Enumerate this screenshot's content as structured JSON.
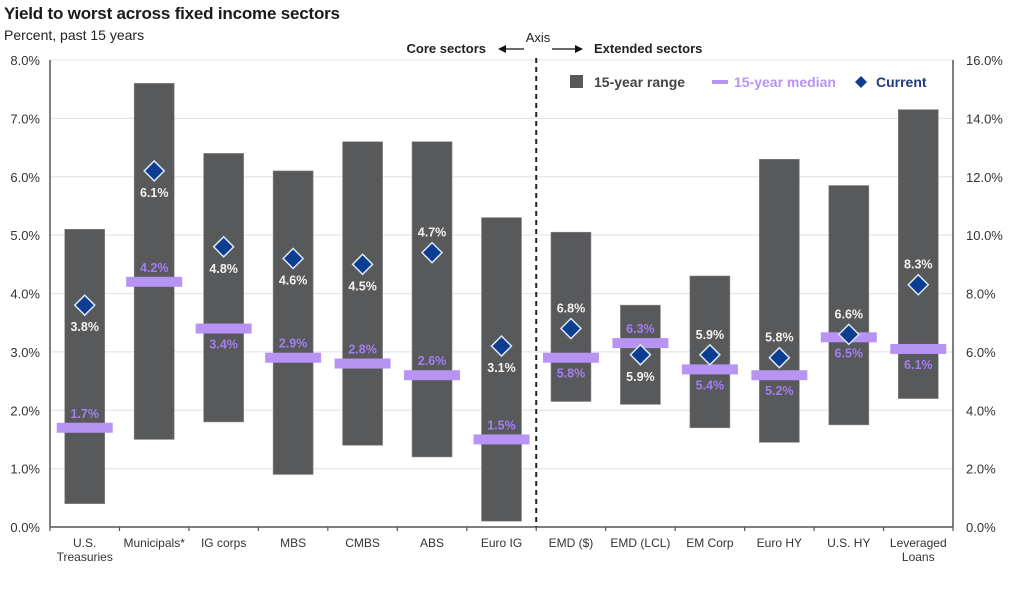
{
  "chart_data": {
    "type": "bar",
    "subtype": "floating-range-with-markers",
    "title": "Yield to worst across fixed income sectors",
    "subtitle": "Percent, past 15 years",
    "left_axis": {
      "ylim": [
        0,
        8
      ],
      "ticks": [
        "0.0%",
        "1.0%",
        "2.0%",
        "3.0%",
        "4.0%",
        "5.0%",
        "6.0%",
        "7.0%",
        "8.0%"
      ],
      "applies_to": "Core sectors"
    },
    "right_axis": {
      "ylim": [
        0,
        16
      ],
      "ticks": [
        "0.0%",
        "2.0%",
        "4.0%",
        "6.0%",
        "8.0%",
        "10.0%",
        "12.0%",
        "14.0%",
        "16.0%"
      ],
      "applies_to": "Extended sectors"
    },
    "grid": true,
    "axis_annotation": {
      "axis_label": "Axis",
      "left_label": "Core sectors",
      "right_label": "Extended sectors"
    },
    "legend": {
      "position": "top-right",
      "items": [
        {
          "name": "15-year range",
          "symbol": "square",
          "color": "#58595b"
        },
        {
          "name": "15-year median",
          "symbol": "dash",
          "color": "#b794f4"
        },
        {
          "name": "Current",
          "symbol": "diamond",
          "color": "#0b3d91"
        }
      ]
    },
    "categories": [
      "U.S. Treasuries",
      "Municipals*",
      "IG corps",
      "MBS",
      "CMBS",
      "ABS",
      "Euro IG",
      "EMD ($)",
      "EMD (LCL)",
      "EM Corp",
      "Euro HY",
      "U.S. HY",
      "Leveraged Loans"
    ],
    "category_lines": [
      [
        "U.S.",
        "Treasuries"
      ],
      [
        "Municipals*"
      ],
      [
        "IG corps"
      ],
      [
        "MBS"
      ],
      [
        "CMBS"
      ],
      [
        "ABS"
      ],
      [
        "Euro IG"
      ],
      [
        "EMD ($)"
      ],
      [
        "EMD (LCL)"
      ],
      [
        "EM Corp"
      ],
      [
        "Euro HY"
      ],
      [
        "U.S. HY"
      ],
      [
        "Leveraged",
        "Loans"
      ]
    ],
    "axis_assignment": [
      "left",
      "left",
      "left",
      "left",
      "left",
      "left",
      "left",
      "right",
      "right",
      "right",
      "right",
      "right",
      "right"
    ],
    "series": [
      {
        "name": "15-year range low",
        "values": [
          0.4,
          1.5,
          1.8,
          0.9,
          1.4,
          1.2,
          0.1,
          4.3,
          4.2,
          3.4,
          2.9,
          3.5,
          4.4
        ]
      },
      {
        "name": "15-year range high",
        "values": [
          5.1,
          7.6,
          6.4,
          6.1,
          6.6,
          6.6,
          5.3,
          10.1,
          7.6,
          8.6,
          12.6,
          11.7,
          14.3
        ]
      },
      {
        "name": "15-year median",
        "values": [
          1.7,
          4.2,
          3.4,
          2.9,
          2.8,
          2.6,
          1.5,
          5.8,
          6.3,
          5.4,
          5.2,
          6.5,
          6.1
        ]
      },
      {
        "name": "Current",
        "values": [
          3.8,
          6.1,
          4.8,
          4.6,
          4.5,
          4.7,
          3.1,
          6.8,
          5.9,
          5.9,
          5.8,
          6.6,
          8.3
        ]
      }
    ],
    "median_labels": [
      "1.7%",
      "4.2%",
      "3.4%",
      "2.9%",
      "2.8%",
      "2.6%",
      "1.5%",
      "5.8%",
      "6.3%",
      "5.4%",
      "5.2%",
      "6.5%",
      "6.1%"
    ],
    "current_labels": [
      "3.8%",
      "6.1%",
      "4.8%",
      "4.6%",
      "4.5%",
      "4.7%",
      "3.1%",
      "6.8%",
      "5.9%",
      "5.9%",
      "5.8%",
      "6.6%",
      "8.3%"
    ],
    "median_label_pos": [
      "above",
      "above",
      "below",
      "above",
      "above",
      "above",
      "above",
      "below",
      "above",
      "below",
      "below",
      "below",
      "below"
    ],
    "current_label_pos": [
      "below",
      "below",
      "below",
      "below",
      "below",
      "above",
      "below",
      "above",
      "below",
      "above",
      "above",
      "above",
      "above"
    ]
  }
}
